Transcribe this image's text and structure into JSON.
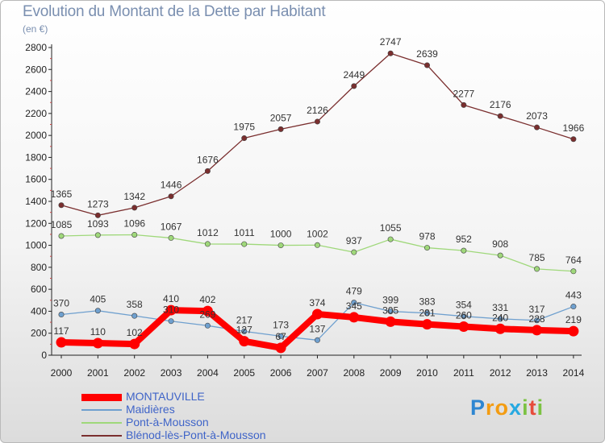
{
  "header": {
    "title": "Evolution du Montant de la Dette par Habitant",
    "subtitle": "(en €)"
  },
  "brand": {
    "letters": [
      "P",
      "r",
      "o",
      "x",
      "i",
      "t",
      "i"
    ],
    "colors": [
      "#2e86d1",
      "#f39c12",
      "#f39c12",
      "#27a9e1",
      "#7cc243",
      "#e74c3c",
      "#7cc243"
    ]
  },
  "chart_data": {
    "type": "line",
    "title": "Evolution du Montant de la Dette par Habitant",
    "ylabel": "(en €)",
    "xlabel": "",
    "ylim": [
      0,
      2800
    ],
    "yticks": [
      0,
      200,
      400,
      600,
      800,
      1000,
      1200,
      1400,
      1600,
      1800,
      2000,
      2200,
      2400,
      2600,
      2800
    ],
    "grid": false,
    "legend_position": "bottom",
    "categories": [
      "2000",
      "2001",
      "2002",
      "2003",
      "2004",
      "2005",
      "2006",
      "2007",
      "2008",
      "2009",
      "2010",
      "2011",
      "2012",
      "2013",
      "2014"
    ],
    "series": [
      {
        "name": "MONTAUVILLE",
        "color": "#ff0000",
        "values": [
          117,
          110,
          102,
          410,
          402,
          127,
          67,
          374,
          345,
          305,
          281,
          260,
          240,
          228,
          219
        ],
        "labels": [
          "117",
          "110",
          "102",
          "410",
          "402",
          "127",
          "67",
          "374",
          "345",
          "305",
          "281",
          "260",
          "240",
          "228",
          "219"
        ]
      },
      {
        "name": "Maidières",
        "color": "#6fa0cf",
        "values": [
          370,
          405,
          358,
          310,
          269,
          217,
          173,
          137,
          479,
          399,
          383,
          354,
          331,
          317,
          443
        ],
        "labels": [
          "370",
          "405",
          "358",
          "310",
          "269",
          "217",
          "173",
          "137",
          "479",
          "399",
          "383",
          "354",
          "331",
          "317",
          "443"
        ]
      },
      {
        "name": "Pont-à-Mousson",
        "color": "#9fd87a",
        "values": [
          1085,
          1093,
          1096,
          1067,
          1012,
          1011,
          1000,
          1002,
          937,
          1055,
          978,
          952,
          908,
          785,
          764
        ],
        "labels": [
          "1085",
          "1093",
          "1096",
          "1067",
          "1012",
          "1011",
          "1000",
          "1002",
          "937",
          "1055",
          "978",
          "952",
          "908",
          "785",
          "764"
        ]
      },
      {
        "name": "Blénod-lès-Pont-à-Mousson",
        "color": "#7a2e2e",
        "values": [
          1365,
          1273,
          1342,
          1446,
          1676,
          1975,
          2057,
          2126,
          2449,
          2747,
          2639,
          2277,
          2176,
          2073,
          1966
        ],
        "labels": [
          "1365",
          "1273",
          "1342",
          "1446",
          "1676",
          "1975",
          "2057",
          "2126",
          "2449",
          "2747",
          "2639",
          "2277",
          "2176",
          "2073",
          "1966"
        ]
      }
    ]
  }
}
